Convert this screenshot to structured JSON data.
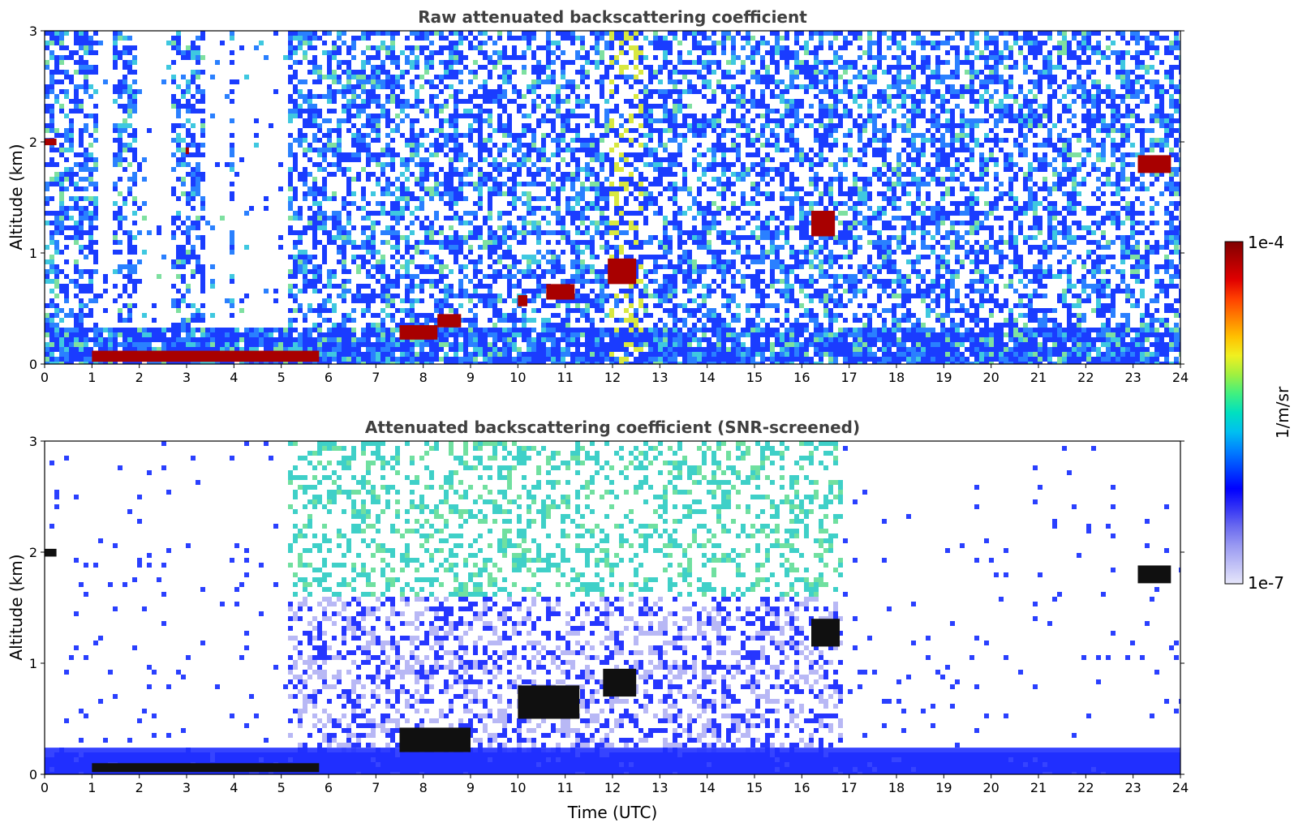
{
  "chart_data": [
    {
      "type": "heatmap",
      "title": "Raw attenuated backscattering coefficient",
      "xlabel": "",
      "ylabel": "Altitude (km)",
      "xlim": [
        0,
        24
      ],
      "ylim": [
        0,
        3
      ],
      "x_ticks": [
        "0",
        "1",
        "2",
        "3",
        "4",
        "5",
        "6",
        "7",
        "8",
        "9",
        "10",
        "11",
        "12",
        "13",
        "14",
        "15",
        "16",
        "17",
        "18",
        "19",
        "20",
        "21",
        "22",
        "23",
        "24"
      ],
      "y_ticks": [
        "0",
        "1",
        "2",
        "3"
      ],
      "features": [
        {
          "kind": "strong_layer",
          "t_start": 1.0,
          "t_end": 5.8,
          "alt_bottom": 0.02,
          "alt_top": 0.12
        },
        {
          "kind": "strong_layer",
          "t_start": 0.0,
          "t_end": 0.25,
          "alt_bottom": 1.97,
          "alt_top": 2.03
        },
        {
          "kind": "strong_layer",
          "t_start": 2.98,
          "t_end": 3.05,
          "alt_bottom": 1.89,
          "alt_top": 1.95
        },
        {
          "kind": "strong_layer",
          "t_start": 7.5,
          "t_end": 8.3,
          "alt_bottom": 0.22,
          "alt_top": 0.35
        },
        {
          "kind": "strong_layer",
          "t_start": 8.3,
          "t_end": 8.8,
          "alt_bottom": 0.33,
          "alt_top": 0.45
        },
        {
          "kind": "strong_layer",
          "t_start": 10.0,
          "t_end": 10.2,
          "alt_bottom": 0.52,
          "alt_top": 0.62
        },
        {
          "kind": "strong_layer",
          "t_start": 10.6,
          "t_end": 11.2,
          "alt_bottom": 0.58,
          "alt_top": 0.72
        },
        {
          "kind": "strong_layer",
          "t_start": 11.9,
          "t_end": 12.5,
          "alt_bottom": 0.72,
          "alt_top": 0.95
        },
        {
          "kind": "strong_layer",
          "t_start": 16.2,
          "t_end": 16.7,
          "alt_bottom": 1.15,
          "alt_top": 1.38
        },
        {
          "kind": "strong_layer",
          "t_start": 23.1,
          "t_end": 23.8,
          "alt_bottom": 1.72,
          "alt_top": 1.88
        }
      ]
    },
    {
      "type": "heatmap",
      "title": "Attenuated backscattering coefficient (SNR-screened)",
      "xlabel": "Time (UTC)",
      "ylabel": "Altitude (km)",
      "xlim": [
        0,
        24
      ],
      "ylim": [
        0,
        3
      ],
      "x_ticks": [
        "0",
        "1",
        "2",
        "3",
        "4",
        "5",
        "6",
        "7",
        "8",
        "9",
        "10",
        "11",
        "12",
        "13",
        "14",
        "15",
        "16",
        "17",
        "18",
        "19",
        "20",
        "21",
        "22",
        "23",
        "24"
      ],
      "y_ticks": [
        "0",
        "1",
        "2",
        "3"
      ],
      "features": [
        {
          "kind": "boundary_layer",
          "t_start": 0.0,
          "t_end": 24.0,
          "alt_bottom": 0.0,
          "alt_top": 0.24
        },
        {
          "kind": "strong_layer",
          "t_start": 1.0,
          "t_end": 5.8,
          "alt_bottom": 0.02,
          "alt_top": 0.1
        },
        {
          "kind": "strong_layer",
          "t_start": 0.0,
          "t_end": 0.25,
          "alt_bottom": 1.96,
          "alt_top": 2.03
        },
        {
          "kind": "strong_layer",
          "t_start": 7.5,
          "t_end": 9.0,
          "alt_bottom": 0.2,
          "alt_top": 0.42
        },
        {
          "kind": "strong_layer",
          "t_start": 10.0,
          "t_end": 11.3,
          "alt_bottom": 0.5,
          "alt_top": 0.8
        },
        {
          "kind": "strong_layer",
          "t_start": 11.8,
          "t_end": 12.5,
          "alt_bottom": 0.7,
          "alt_top": 0.95
        },
        {
          "kind": "strong_layer",
          "t_start": 16.2,
          "t_end": 16.8,
          "alt_bottom": 1.15,
          "alt_top": 1.4
        },
        {
          "kind": "strong_layer",
          "t_start": 23.1,
          "t_end": 23.8,
          "alt_bottom": 1.72,
          "alt_top": 1.88
        }
      ]
    }
  ],
  "colorbar": {
    "label": "1/m/sr",
    "max_label": "1e-4",
    "min_label": "1e-7",
    "colors": [
      "#e6e6fa",
      "#c0c0f6",
      "#9999f2",
      "#6b6bef",
      "#3333f5",
      "#0000ff",
      "#0040ff",
      "#0080ff",
      "#00c0f0",
      "#00e0c0",
      "#40f080",
      "#a0f040",
      "#f0f020",
      "#ffc000",
      "#ff8000",
      "#ff4000",
      "#e00000",
      "#b00000",
      "#800000"
    ]
  }
}
